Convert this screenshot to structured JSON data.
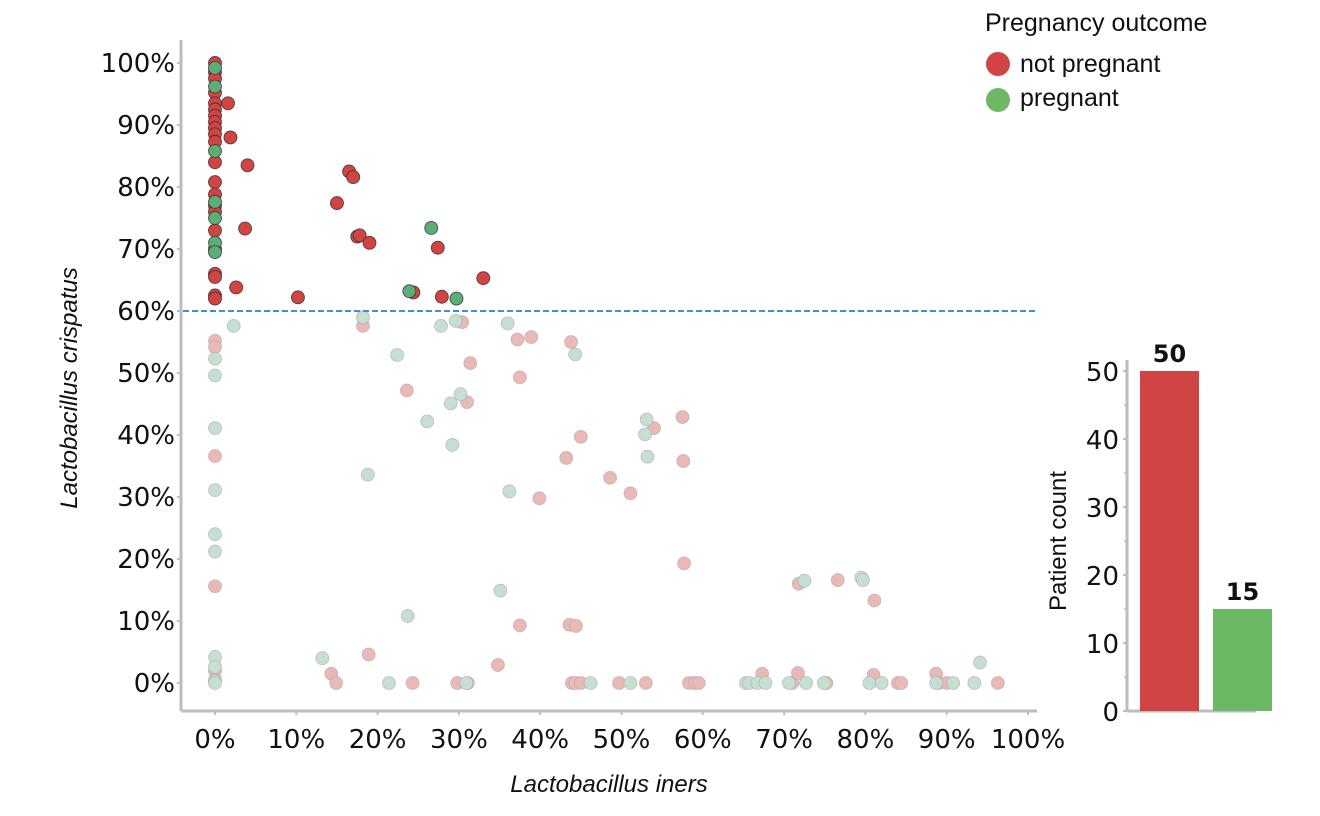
{
  "chart_data": [
    {
      "type": "scatter",
      "title": "",
      "xlabel": "Lactobacillus iners",
      "ylabel": "Lactobacillus crispatus",
      "xlim": [
        0,
        100
      ],
      "ylim": [
        0,
        100
      ],
      "x_ticks": [
        "0%",
        "10%",
        "20%",
        "30%",
        "40%",
        "50%",
        "60%",
        "70%",
        "80%",
        "90%",
        "100%"
      ],
      "y_ticks": [
        "0%",
        "10%",
        "20%",
        "30%",
        "40%",
        "50%",
        "60%",
        "70%",
        "80%",
        "90%",
        "100%"
      ],
      "grid": false,
      "threshold": {
        "axis": "y",
        "value": 60,
        "style": "dashed",
        "color": "#3a8fd8"
      },
      "legend": {
        "title": "Pregnancy outcome",
        "placement": "top-right",
        "entries": [
          {
            "label": "not pregnant",
            "color": "#d04444"
          },
          {
            "label": "pregnant",
            "color": "#6cb865"
          }
        ]
      },
      "series": [
        {
          "name": "not pregnant",
          "color": "#d04444",
          "faded_color": "#e8b9b6",
          "points": [
            [
              0,
              100
            ],
            [
              0,
              98.5
            ],
            [
              0,
              97.5
            ],
            [
              0,
              95.2
            ],
            [
              0,
              93.5
            ],
            [
              0,
              92.5
            ],
            [
              0,
              91.5
            ],
            [
              0,
              90.5
            ],
            [
              0,
              89.5
            ],
            [
              0,
              88.5
            ],
            [
              0,
              87.3
            ],
            [
              0,
              84
            ],
            [
              0,
              80.8
            ],
            [
              0,
              78.8
            ],
            [
              0,
              77
            ],
            [
              0,
              76
            ],
            [
              0,
              73
            ],
            [
              0,
              70
            ],
            [
              0,
              66
            ],
            [
              0,
              65.5
            ],
            [
              0,
              62.5
            ],
            [
              0,
              62
            ],
            [
              1.6,
              93.5
            ],
            [
              1.9,
              88
            ],
            [
              4,
              83.5
            ],
            [
              3.7,
              73.3
            ],
            [
              2.6,
              63.8
            ],
            [
              10.2,
              62.2
            ],
            [
              15,
              77.4
            ],
            [
              16.5,
              82.5
            ],
            [
              17,
              81.6
            ],
            [
              17.5,
              72
            ],
            [
              17.8,
              72.2
            ],
            [
              19,
              71
            ],
            [
              24.4,
              63
            ],
            [
              27.4,
              70.2
            ],
            [
              27.9,
              62.3
            ],
            [
              33,
              65.3
            ],
            [
              0,
              55.2
            ],
            [
              0,
              54.2
            ],
            [
              0,
              36.6
            ],
            [
              0,
              15.6
            ],
            [
              0,
              2
            ],
            [
              0,
              0.5
            ],
            [
              18.2,
              57.6
            ],
            [
              23.6,
              47.2
            ],
            [
              30.4,
              58.2
            ],
            [
              31,
              45.3
            ],
            [
              31.4,
              51.6
            ],
            [
              37.2,
              55.4
            ],
            [
              37.5,
              49.3
            ],
            [
              38.9,
              55.8
            ],
            [
              43.8,
              55
            ],
            [
              45,
              39.7
            ],
            [
              54,
              41.1
            ],
            [
              57.5,
              42.9
            ],
            [
              57.6,
              35.8
            ],
            [
              43.2,
              36.3
            ],
            [
              48.6,
              33.1
            ],
            [
              51.1,
              30.6
            ],
            [
              39.9,
              29.8
            ],
            [
              57.7,
              19.3
            ],
            [
              37.5,
              9.3
            ],
            [
              43.6,
              9.4
            ],
            [
              44.4,
              9.2
            ],
            [
              34.8,
              2.9
            ],
            [
              18.9,
              4.6
            ],
            [
              14.3,
              1.5
            ],
            [
              14.9,
              0
            ],
            [
              24.3,
              0
            ],
            [
              29.8,
              0
            ],
            [
              31.1,
              0
            ],
            [
              43.9,
              0
            ],
            [
              44.3,
              0
            ],
            [
              45,
              0
            ],
            [
              49.7,
              0
            ],
            [
              53,
              0
            ],
            [
              58.3,
              0
            ],
            [
              59,
              0
            ],
            [
              59.5,
              0
            ],
            [
              71,
              0
            ],
            [
              71.7,
              1.6
            ],
            [
              67.3,
              1.5
            ],
            [
              75,
              0
            ],
            [
              75.2,
              0
            ],
            [
              71.8,
              16
            ],
            [
              76.6,
              16.6
            ],
            [
              81.1,
              13.3
            ],
            [
              81,
              1.3
            ],
            [
              84,
              0
            ],
            [
              84.4,
              0
            ],
            [
              88.7,
              1.5
            ],
            [
              89,
              0
            ],
            [
              90,
              0
            ],
            [
              96.3,
              0
            ]
          ]
        },
        {
          "name": "pregnant",
          "color": "#6cb865",
          "faded_color": "#c5e0d3",
          "points": [
            [
              0,
              99.2
            ],
            [
              0,
              96.2
            ],
            [
              0,
              85.8
            ],
            [
              0,
              77.6
            ],
            [
              0,
              75
            ],
            [
              0,
              71
            ],
            [
              0,
              69.5
            ],
            [
              26.6,
              73.4
            ],
            [
              23.9,
              63.2
            ],
            [
              29.7,
              62
            ],
            [
              2.3,
              57.6
            ],
            [
              0,
              52.3
            ],
            [
              0,
              49.6
            ],
            [
              0,
              41.1
            ],
            [
              0,
              31.1
            ],
            [
              0,
              24
            ],
            [
              0,
              21.2
            ],
            [
              0,
              4.2
            ],
            [
              0,
              2.6
            ],
            [
              0,
              0.3
            ],
            [
              0,
              0
            ],
            [
              18.2,
              59
            ],
            [
              22.4,
              52.9
            ],
            [
              27.8,
              57.6
            ],
            [
              29.6,
              58.4
            ],
            [
              36,
              58
            ],
            [
              44.3,
              53
            ],
            [
              26.1,
              42.2
            ],
            [
              29,
              45.1
            ],
            [
              30.2,
              46.6
            ],
            [
              29.2,
              38.4
            ],
            [
              18.8,
              33.6
            ],
            [
              52.9,
              40.1
            ],
            [
              53.1,
              42.5
            ],
            [
              53.2,
              36.5
            ],
            [
              36.2,
              30.9
            ],
            [
              35.1,
              14.9
            ],
            [
              23.7,
              10.8
            ],
            [
              13.2,
              4
            ],
            [
              21.4,
              0
            ],
            [
              30.9,
              0
            ],
            [
              46.2,
              0
            ],
            [
              51.1,
              0
            ],
            [
              65.3,
              0
            ],
            [
              65.7,
              0
            ],
            [
              66.7,
              0
            ],
            [
              67.7,
              0
            ],
            [
              70.6,
              0
            ],
            [
              72.5,
              16.5
            ],
            [
              72.7,
              0
            ],
            [
              74.9,
              0
            ],
            [
              79.5,
              17
            ],
            [
              79.7,
              16.6
            ],
            [
              80.5,
              0
            ],
            [
              82,
              0
            ],
            [
              88.7,
              0
            ],
            [
              90.8,
              0
            ],
            [
              93.4,
              0
            ],
            [
              94.1,
              3.3
            ]
          ]
        }
      ]
    },
    {
      "type": "bar",
      "title": "",
      "xlabel": "",
      "ylabel": "Patient count",
      "categories": [
        "not pregnant",
        "pregnant"
      ],
      "values": [
        50,
        15
      ],
      "data_labels": [
        "50",
        "15"
      ],
      "colors": [
        "#d04444",
        "#6cb865"
      ],
      "ylim": [
        0,
        52
      ],
      "y_ticks": [
        "0",
        "10",
        "20",
        "30",
        "40",
        "50"
      ],
      "grid": false
    }
  ]
}
